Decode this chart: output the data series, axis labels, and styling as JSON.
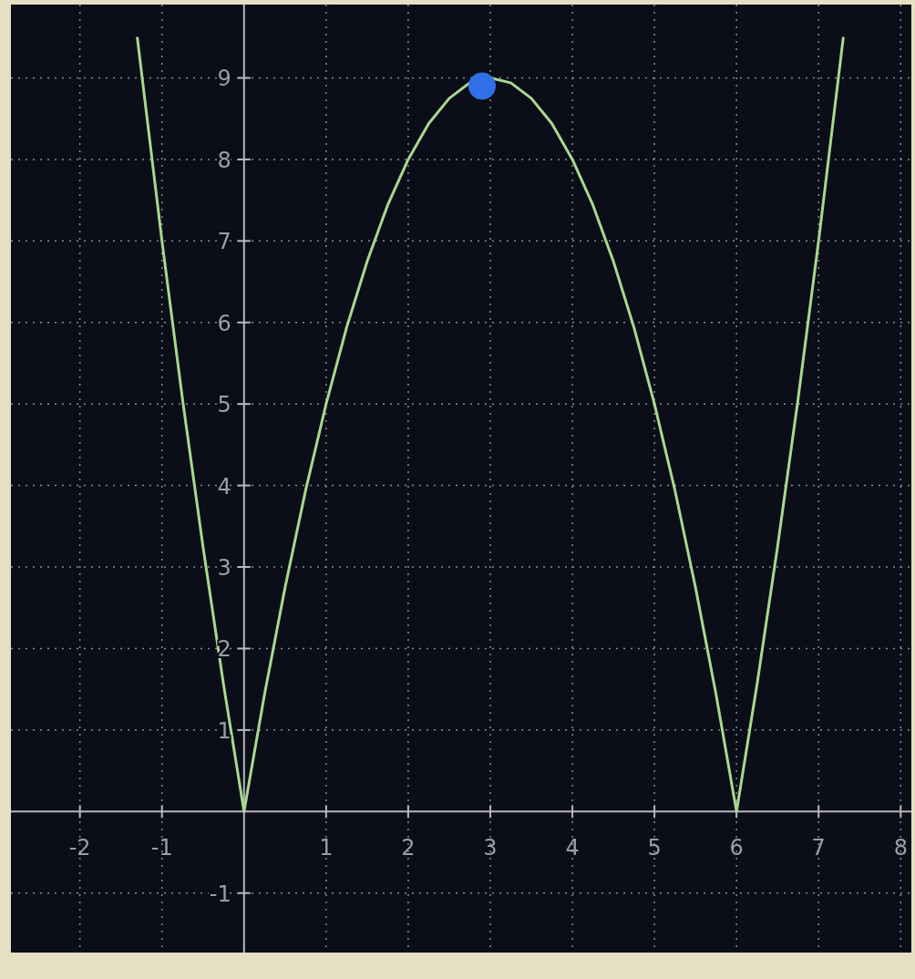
{
  "chart_data": {
    "type": "line",
    "xlim": [
      -2.84,
      8.13
    ],
    "ylim": [
      -1.73,
      9.9
    ],
    "xticks": [
      -2,
      -1,
      1,
      2,
      3,
      4,
      5,
      6,
      7,
      8
    ],
    "yticks": [
      -1,
      1,
      2,
      3,
      4,
      5,
      6,
      7,
      8,
      9
    ],
    "grid": true,
    "line_style": "solid",
    "series": [
      {
        "color": "#a8d890",
        "x": [
          -1.3,
          -1,
          -0.75,
          -0.5,
          -0.25,
          0,
          0.25,
          0.5,
          0.75,
          1,
          1.25,
          1.5,
          1.75,
          2,
          2.25,
          2.5,
          2.75,
          3,
          3.25,
          3.5,
          3.75,
          4,
          4.25,
          4.5,
          4.75,
          5,
          5.25,
          5.5,
          5.75,
          6,
          6.25,
          6.5,
          6.75,
          7,
          7.3
        ],
        "values": [
          9.49,
          7,
          5.06,
          3.25,
          1.56,
          0,
          1.44,
          2.75,
          3.94,
          5,
          5.94,
          6.75,
          7.44,
          8,
          8.44,
          8.75,
          8.94,
          9,
          8.94,
          8.75,
          8.44,
          8,
          7.44,
          6.75,
          5.94,
          5,
          3.94,
          2.75,
          1.44,
          0,
          1.56,
          3.25,
          5.06,
          7,
          9.49
        ]
      },
      {
        "type": "scatter",
        "color": "#2f6fe8",
        "marker": "circle",
        "x": [
          2.9
        ],
        "values": [
          8.9
        ]
      }
    ]
  }
}
